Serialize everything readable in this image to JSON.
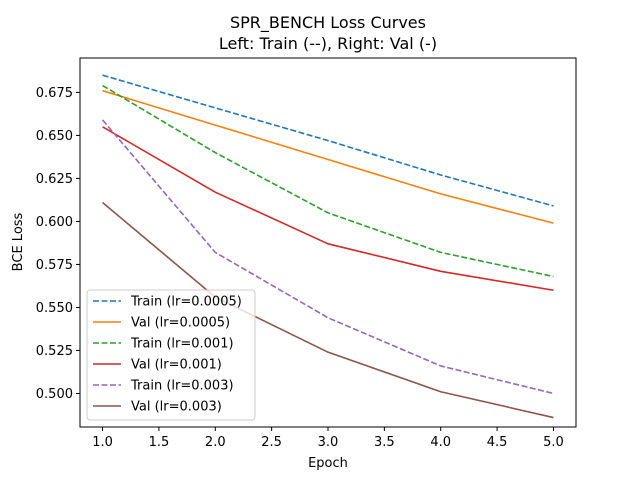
{
  "chart_data": {
    "type": "line",
    "title": "SPR_BENCH Loss Curves",
    "subtitle": "Left: Train (--), Right: Val (-)",
    "xlabel": "Epoch",
    "ylabel": "BCE Loss",
    "xlim": [
      0.8,
      5.2
    ],
    "ylim": [
      0.4805,
      0.695
    ],
    "xticks": [
      "1.0",
      "1.5",
      "2.0",
      "2.5",
      "3.0",
      "3.5",
      "4.0",
      "4.5",
      "5.0"
    ],
    "yticks": [
      "0.500",
      "0.525",
      "0.550",
      "0.575",
      "0.600",
      "0.625",
      "0.650",
      "0.675"
    ],
    "grid": false,
    "legend_position": "lower-left",
    "x": [
      1,
      2,
      3,
      4,
      5
    ],
    "series": [
      {
        "name": "Train (lr=0.0005)",
        "color": "#1f77b4",
        "dash": "dashed",
        "values": [
          0.685,
          0.666,
          0.647,
          0.627,
          0.609
        ]
      },
      {
        "name": "Val (lr=0.0005)",
        "color": "#ff7f0e",
        "dash": "solid",
        "values": [
          0.676,
          0.656,
          0.636,
          0.616,
          0.599
        ]
      },
      {
        "name": "Train (lr=0.001)",
        "color": "#2ca02c",
        "dash": "dashed",
        "values": [
          0.679,
          0.64,
          0.605,
          0.582,
          0.568
        ]
      },
      {
        "name": "Val (lr=0.001)",
        "color": "#d62728",
        "dash": "solid",
        "values": [
          0.655,
          0.617,
          0.587,
          0.571,
          0.56
        ]
      },
      {
        "name": "Train (lr=0.003)",
        "color": "#9467bd",
        "dash": "dashed",
        "values": [
          0.659,
          0.582,
          0.544,
          0.516,
          0.5
        ]
      },
      {
        "name": "Val (lr=0.003)",
        "color": "#8c564b",
        "dash": "solid",
        "values": [
          0.611,
          0.556,
          0.524,
          0.501,
          0.486
        ]
      }
    ]
  }
}
